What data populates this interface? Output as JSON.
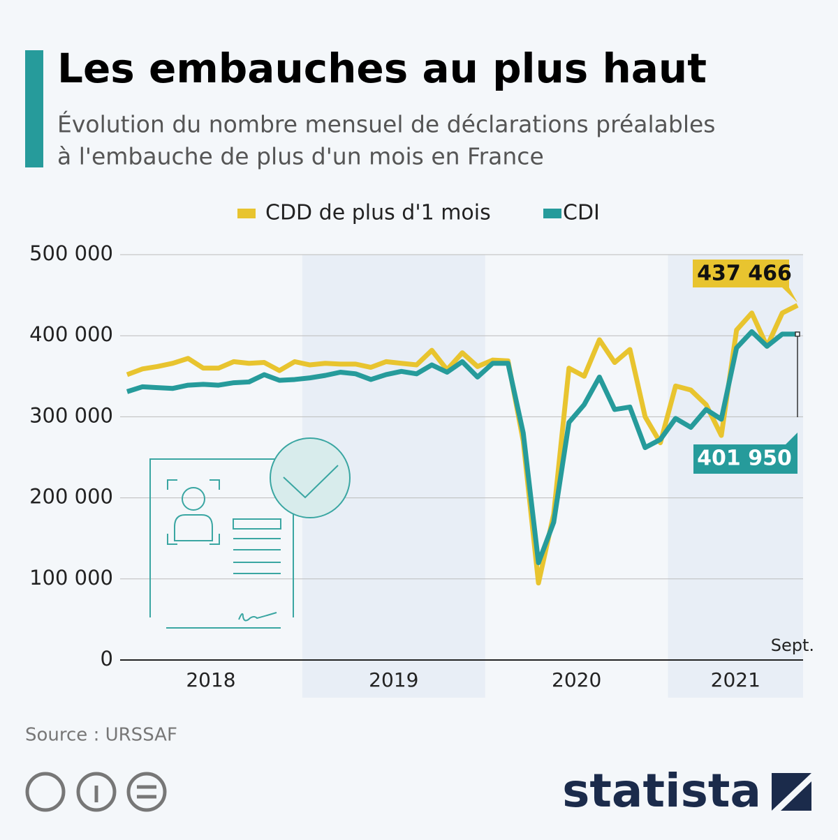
{
  "chart_data": {
    "type": "line",
    "title": "Les embauches au plus haut",
    "subtitle": [
      "Évolution du nombre mensuel de déclarations préalables",
      "à l'embauche de plus d'un mois en France"
    ],
    "years": [
      "2018",
      "2019",
      "2020",
      "2021"
    ],
    "last_month_label": "Sept.",
    "series": [
      {
        "name": "CDD de plus d'1 mois",
        "color": "#e8c42f",
        "values": [
          352000,
          359000,
          362000,
          366000,
          372000,
          360000,
          360000,
          368000,
          366000,
          367000,
          357000,
          368000,
          364000,
          366000,
          365000,
          365000,
          361000,
          368000,
          366000,
          364000,
          382000,
          358000,
          379000,
          362000,
          370000,
          369000,
          270000,
          95000,
          180000,
          360000,
          350000,
          395000,
          367000,
          383000,
          300000,
          268000,
          338000,
          333000,
          315000,
          277000,
          407000,
          428000,
          387000,
          428000,
          437466
        ],
        "end_label": "437 466"
      },
      {
        "name": "CDI",
        "color": "#269b9b",
        "values": [
          331000,
          337000,
          336000,
          335000,
          339000,
          340000,
          339000,
          342000,
          343000,
          352000,
          345000,
          346000,
          348000,
          351000,
          355000,
          353000,
          346000,
          352000,
          356000,
          353000,
          364000,
          355000,
          368000,
          349000,
          366000,
          366000,
          280000,
          120000,
          170000,
          293000,
          315000,
          349000,
          309000,
          312000,
          262000,
          272000,
          298000,
          287000,
          309000,
          297000,
          385000,
          405000,
          387000,
          402000,
          401950
        ],
        "end_label": "401 950"
      }
    ],
    "ylim": [
      0,
      500000
    ],
    "yticks": [
      0,
      {
        "value": 100000,
        "label": "100 000"
      },
      {
        "value": 200000,
        "label": "200 000"
      },
      {
        "value": 300000,
        "label": "300 000"
      },
      {
        "value": 400000,
        "label": "400 000"
      },
      {
        "value": 500000,
        "label": "500 000"
      }
    ],
    "grid": true,
    "source": "Source : URSSAF",
    "brand": "statista"
  }
}
